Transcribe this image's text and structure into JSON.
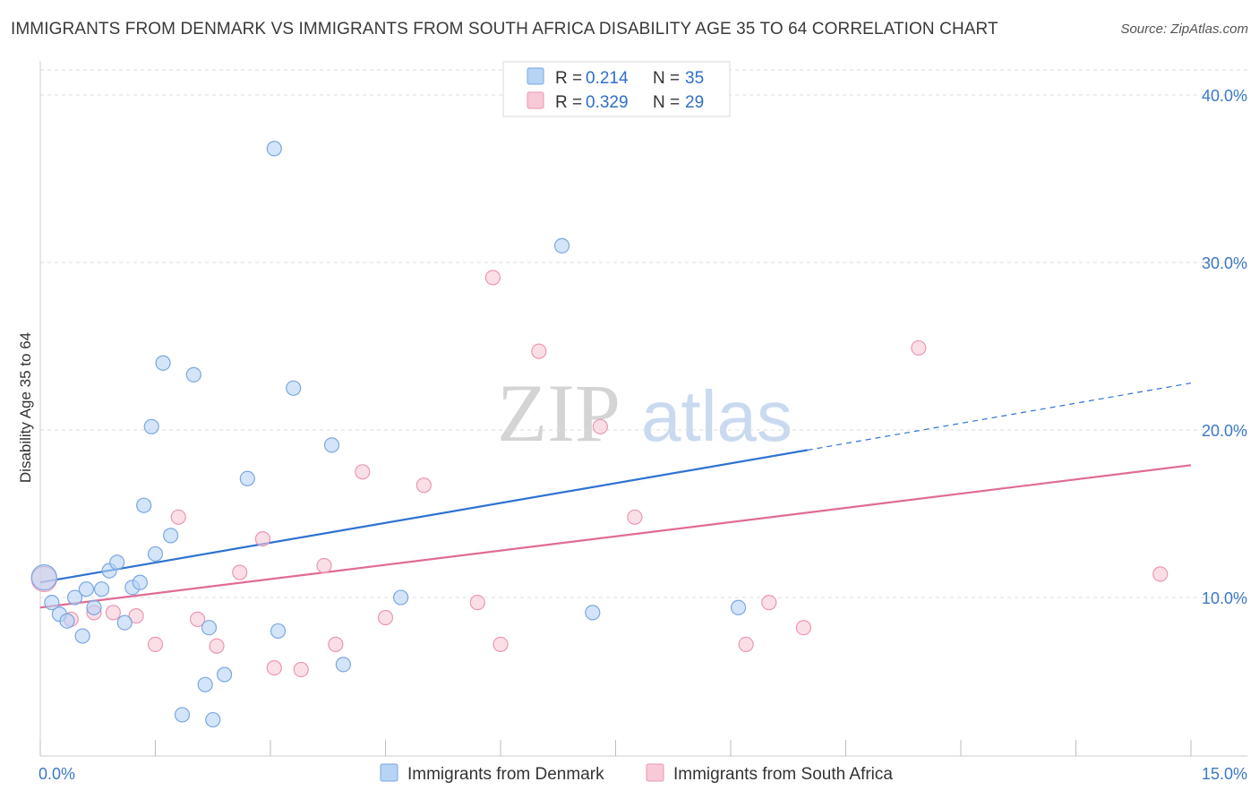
{
  "title": "IMMIGRANTS FROM DENMARK VS IMMIGRANTS FROM SOUTH AFRICA DISABILITY AGE 35 TO 64 CORRELATION CHART",
  "source": "Source: ZipAtlas.com",
  "watermark": {
    "zip": "ZIP",
    "atlas": "atlas"
  },
  "colors": {
    "denmark_fill": "#b7d3f5",
    "denmark_stroke": "#7aa7e0",
    "denmark_line": "#2f72d0",
    "southafrica_fill": "#f8c9d7",
    "southafrica_stroke": "#eb97b2",
    "southafrica_line": "#e06b96",
    "grid": "#dddddd",
    "tick_label": "#3b78c5"
  },
  "legend_box": {
    "rows": [
      {
        "r_label": "R =",
        "r_value": "0.214",
        "n_label": "N =",
        "n_value": "35"
      },
      {
        "r_label": "R =",
        "r_value": "0.329",
        "n_label": "N =",
        "n_value": "29"
      }
    ]
  },
  "bottom_legend": {
    "denmark": "Immigrants from Denmark",
    "southafrica": "Immigrants from South Africa"
  },
  "chart_data": {
    "type": "scatter",
    "title": "IMMIGRANTS FROM DENMARK VS IMMIGRANTS FROM SOUTH AFRICA DISABILITY AGE 35 TO 64 CORRELATION CHART",
    "xlabel": "",
    "ylabel": "Disability Age 35 to 64",
    "xlim": [
      0,
      15
    ],
    "ylim": [
      1.5,
      41.5
    ],
    "x_tick_labels": [
      {
        "value": 0,
        "label": "0.0%"
      },
      {
        "value": 15,
        "label": "15.0%"
      }
    ],
    "x_minor_ticks": [
      0,
      1.5,
      3,
      4.5,
      6,
      7.5,
      9,
      10.5,
      12,
      13.5,
      15
    ],
    "y_ticks": [
      {
        "value": 10,
        "label": "10.0%"
      },
      {
        "value": 20,
        "label": "20.0%"
      },
      {
        "value": 30,
        "label": "30.0%"
      },
      {
        "value": 40,
        "label": "40.0%"
      }
    ],
    "grid": true,
    "legend_position": "top-center",
    "series": [
      {
        "name": "Immigrants from Denmark",
        "R": 0.214,
        "N": 35,
        "trend": {
          "x0": 0,
          "y0": 10.9,
          "x1": 10.0,
          "y1": 18.8,
          "dashed_to_x": 15,
          "dashed_to_y": 22.8
        },
        "points": [
          [
            0.05,
            11.2
          ],
          [
            0.15,
            9.7
          ],
          [
            0.25,
            9.0
          ],
          [
            0.35,
            8.6
          ],
          [
            0.45,
            10.0
          ],
          [
            0.55,
            7.7
          ],
          [
            0.6,
            10.5
          ],
          [
            0.7,
            9.4
          ],
          [
            0.8,
            10.5
          ],
          [
            0.9,
            11.6
          ],
          [
            1.0,
            12.1
          ],
          [
            1.1,
            8.5
          ],
          [
            1.2,
            10.6
          ],
          [
            1.3,
            10.9
          ],
          [
            1.35,
            15.5
          ],
          [
            1.45,
            20.2
          ],
          [
            1.5,
            12.6
          ],
          [
            1.6,
            24.0
          ],
          [
            1.7,
            13.7
          ],
          [
            1.85,
            3.0
          ],
          [
            2.0,
            23.3
          ],
          [
            2.15,
            4.8
          ],
          [
            2.2,
            8.2
          ],
          [
            2.25,
            2.7
          ],
          [
            2.4,
            5.4
          ],
          [
            2.7,
            17.1
          ],
          [
            3.05,
            36.8
          ],
          [
            3.1,
            8.0
          ],
          [
            3.3,
            22.5
          ],
          [
            3.8,
            19.1
          ],
          [
            3.95,
            6.0
          ],
          [
            4.7,
            10.0
          ],
          [
            6.8,
            31.0
          ],
          [
            7.2,
            9.1
          ],
          [
            9.1,
            9.4
          ]
        ]
      },
      {
        "name": "Immigrants from South Africa",
        "R": 0.329,
        "N": 29,
        "trend": {
          "x0": 0,
          "y0": 9.4,
          "x1": 15,
          "y1": 17.9
        },
        "points": [
          [
            0.05,
            11.1
          ],
          [
            0.4,
            8.7
          ],
          [
            0.7,
            9.1
          ],
          [
            0.95,
            9.1
          ],
          [
            1.25,
            8.9
          ],
          [
            1.5,
            7.2
          ],
          [
            1.8,
            14.8
          ],
          [
            2.05,
            8.7
          ],
          [
            2.3,
            7.1
          ],
          [
            2.6,
            11.5
          ],
          [
            2.9,
            13.5
          ],
          [
            3.05,
            5.8
          ],
          [
            3.4,
            5.7
          ],
          [
            3.7,
            11.9
          ],
          [
            3.85,
            7.2
          ],
          [
            4.2,
            17.5
          ],
          [
            4.5,
            8.8
          ],
          [
            5.0,
            16.7
          ],
          [
            5.7,
            9.7
          ],
          [
            5.9,
            29.1
          ],
          [
            6.0,
            7.2
          ],
          [
            6.5,
            24.7
          ],
          [
            7.3,
            20.2
          ],
          [
            7.75,
            14.8
          ],
          [
            9.2,
            7.2
          ],
          [
            9.5,
            9.7
          ],
          [
            9.95,
            8.2
          ],
          [
            11.45,
            24.9
          ],
          [
            14.6,
            11.4
          ]
        ]
      }
    ]
  }
}
